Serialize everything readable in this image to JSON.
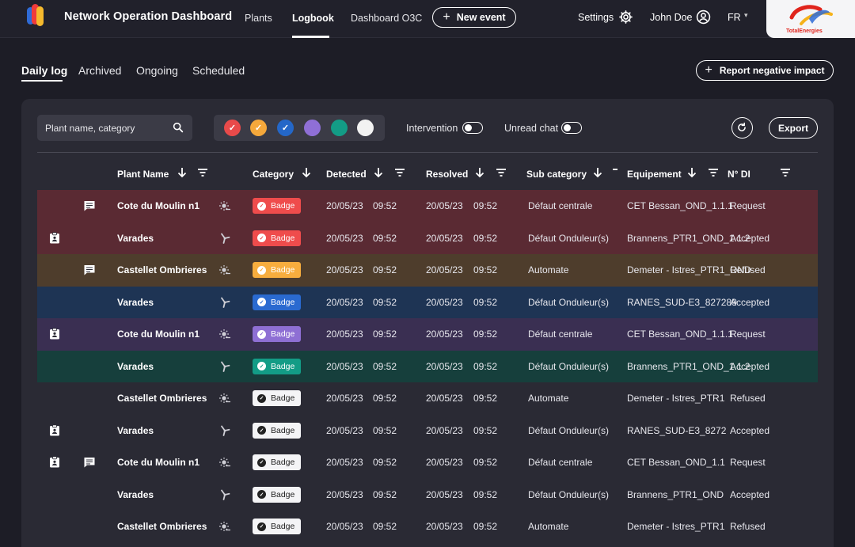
{
  "header": {
    "app_title": "Network Operation Dashboard",
    "nav": [
      "Plants",
      "Logbook",
      "Dashboard O3C"
    ],
    "new_event_label": "New event",
    "settings_label": "Settings",
    "user_name": "John Doe",
    "language": "FR",
    "brand_name": "TotalEnergies"
  },
  "tabs": [
    "Daily log",
    "Archived",
    "Ongoing",
    "Scheduled"
  ],
  "report_button_label": "Report negative impact",
  "filters": {
    "search_placeholder": "Plant name, category",
    "colors": [
      "#e84a4a",
      "#f5a83b",
      "#2467c8",
      "#8f6fd6",
      "#139c86",
      "#f2f2f2"
    ],
    "intervention_label": "Intervention",
    "unread_chat_label": "Unread chat",
    "export_label": "Export"
  },
  "table": {
    "columns": [
      "Plant Name",
      "Category",
      "Detected",
      "Resolved",
      "Sub category",
      "Equipement",
      "N° DI"
    ],
    "rows": [
      {
        "bg": "#5a2a33",
        "badge_bg": "#ef4c4c",
        "badge_fg": "#ffffff",
        "check_bg": "#ffffff",
        "check_fg": "#ef4c4c",
        "intervention": false,
        "chat": true,
        "plant": "Cote du Moulin n1",
        "weather": "sun",
        "badge": "Badge",
        "det_date": "20/05/23",
        "det_time": "09:52",
        "res_date": "20/05/23",
        "res_time": "09:52",
        "sub": "Défaut centrale",
        "equip": "CET Bessan_OND_1.1.1",
        "status": "Request"
      },
      {
        "bg": "#5a2a33",
        "badge_bg": "#ef4c4c",
        "badge_fg": "#ffffff",
        "check_bg": "#ffffff",
        "check_fg": "#ef4c4c",
        "intervention": true,
        "chat": false,
        "plant": "Varades",
        "weather": "wind",
        "badge": "Badge",
        "det_date": "20/05/23",
        "det_time": "09:52",
        "res_date": "20/05/23",
        "res_time": "09:52",
        "sub": "Défaut Onduleur(s)",
        "equip": "Brannens_PTR1_OND_1.1.2",
        "status": "Accepted"
      },
      {
        "bg": "#4e3d2c",
        "badge_bg": "#f7ad3e",
        "badge_fg": "#ffffff",
        "check_bg": "#ffffff",
        "check_fg": "#f7ad3e",
        "intervention": false,
        "chat": true,
        "plant": "Castellet Ombrieres",
        "weather": "sun",
        "badge": "Badge",
        "det_date": "20/05/23",
        "det_time": "09:52",
        "res_date": "20/05/23",
        "res_time": "09:52",
        "sub": "Automate",
        "equip": "Demeter - Istres_PTR1_OND",
        "status": "Refused"
      },
      {
        "bg": "#1e3454",
        "badge_bg": "#2a6ad0",
        "badge_fg": "#ffffff",
        "check_bg": "#ffffff",
        "check_fg": "#2a6ad0",
        "intervention": false,
        "chat": false,
        "plant": "Varades",
        "weather": "wind",
        "badge": "Badge",
        "det_date": "20/05/23",
        "det_time": "09:52",
        "res_date": "20/05/23",
        "res_time": "09:52",
        "sub": "Défaut Onduleur(s)",
        "equip": "RANES_SUD-E3_827289",
        "status": "Accepted"
      },
      {
        "bg": "#3a2f52",
        "badge_bg": "#8e6fd4",
        "badge_fg": "#ffffff",
        "check_bg": "#ffffff",
        "check_fg": "#8e6fd4",
        "intervention": true,
        "chat": false,
        "plant": "Cote du Moulin n1",
        "weather": "sun",
        "badge": "Badge",
        "det_date": "20/05/23",
        "det_time": "09:52",
        "res_date": "20/05/23",
        "res_time": "09:52",
        "sub": "Défaut centrale",
        "equip": "CET Bessan_OND_1.1.1",
        "status": "Request"
      },
      {
        "bg": "#163f3c",
        "badge_bg": "#139c86",
        "badge_fg": "#ffffff",
        "check_bg": "#ffffff",
        "check_fg": "#139c86",
        "intervention": false,
        "chat": false,
        "plant": "Varades",
        "weather": "wind",
        "badge": "Badge",
        "det_date": "20/05/23",
        "det_time": "09:52",
        "res_date": "20/05/23",
        "res_time": "09:52",
        "sub": "Défaut Onduleur(s)",
        "equip": "Brannens_PTR1_OND_1.1.2",
        "status": "Accepted"
      },
      {
        "bg": "#2a2a34",
        "badge_bg": "#f4f4f6",
        "badge_fg": "#222222",
        "check_bg": "#222222",
        "check_fg": "#ffffff",
        "intervention": false,
        "chat": false,
        "plant": "Castellet Ombrieres",
        "weather": "sun",
        "badge": "Badge",
        "det_date": "20/05/23",
        "det_time": "09:52",
        "res_date": "20/05/23",
        "res_time": "09:52",
        "sub": "Automate",
        "equip": "Demeter - Istres_PTR1",
        "status": "Refused"
      },
      {
        "bg": "#2a2a34",
        "badge_bg": "#f4f4f6",
        "badge_fg": "#222222",
        "check_bg": "#222222",
        "check_fg": "#ffffff",
        "intervention": true,
        "chat": false,
        "plant": "Varades",
        "weather": "wind",
        "badge": "Badge",
        "det_date": "20/05/23",
        "det_time": "09:52",
        "res_date": "20/05/23",
        "res_time": "09:52",
        "sub": "Défaut Onduleur(s)",
        "equip": "RANES_SUD-E3_8272",
        "status": "Accepted"
      },
      {
        "bg": "#2a2a34",
        "badge_bg": "#f4f4f6",
        "badge_fg": "#222222",
        "check_bg": "#222222",
        "check_fg": "#ffffff",
        "intervention": true,
        "chat": true,
        "plant": "Cote du Moulin n1",
        "weather": "sun",
        "badge": "Badge",
        "det_date": "20/05/23",
        "det_time": "09:52",
        "res_date": "20/05/23",
        "res_time": "09:52",
        "sub": "Défaut centrale",
        "equip": "CET Bessan_OND_1.1",
        "status": "Request"
      },
      {
        "bg": "#2a2a34",
        "badge_bg": "#f4f4f6",
        "badge_fg": "#222222",
        "check_bg": "#222222",
        "check_fg": "#ffffff",
        "intervention": false,
        "chat": false,
        "plant": "Varades",
        "weather": "wind",
        "badge": "Badge",
        "det_date": "20/05/23",
        "det_time": "09:52",
        "res_date": "20/05/23",
        "res_time": "09:52",
        "sub": "Défaut Onduleur(s)",
        "equip": "Brannens_PTR1_OND",
        "status": "Accepted"
      },
      {
        "bg": "#2a2a34",
        "badge_bg": "#f4f4f6",
        "badge_fg": "#222222",
        "check_bg": "#222222",
        "check_fg": "#ffffff",
        "intervention": false,
        "chat": false,
        "plant": "Castellet Ombrieres",
        "weather": "sun",
        "badge": "Badge",
        "det_date": "20/05/23",
        "det_time": "09:52",
        "res_date": "20/05/23",
        "res_time": "09:52",
        "sub": "Automate",
        "equip": "Demeter - Istres_PTR1",
        "status": "Refused"
      }
    ]
  }
}
